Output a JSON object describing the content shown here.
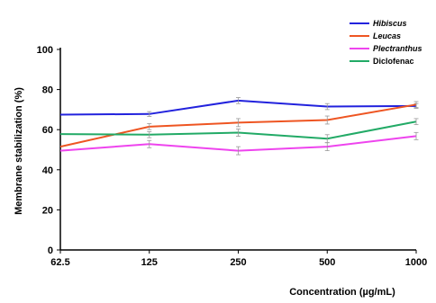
{
  "chart_data": {
    "type": "line",
    "xlabel": "Concentration (µg/mL)",
    "ylabel": "Membrane stabilization (%)",
    "categories": [
      "62.5",
      "125",
      "250",
      "500",
      "1000"
    ],
    "ylim": [
      0,
      100
    ],
    "yticks": [
      "0",
      "20",
      "40",
      "60",
      "80",
      "100"
    ],
    "legend_position": "top-right",
    "grid": false,
    "series": [
      {
        "name": "Hibiscus",
        "color": "#2222dd",
        "italic": true,
        "values": [
          67.5,
          67.8,
          74.5,
          71.5,
          71.8
        ],
        "errors": [
          0,
          1.2,
          1.5,
          1.5,
          1.2
        ]
      },
      {
        "name": "Leucas",
        "color": "#ee5522",
        "italic": true,
        "values": [
          51.5,
          61.5,
          63.5,
          64.8,
          72.5
        ],
        "errors": [
          0,
          1.5,
          2,
          2,
          1.5
        ]
      },
      {
        "name": "Plectranthus",
        "color": "#ee44ee",
        "italic": true,
        "values": [
          49.5,
          52.8,
          49.5,
          51.5,
          56.8
        ],
        "errors": [
          0,
          1.8,
          2,
          2,
          1.8
        ]
      },
      {
        "name": "Diclofenac",
        "color": "#22aa66",
        "italic": false,
        "values": [
          57.8,
          57.5,
          58.5,
          55.5,
          64.0
        ],
        "errors": [
          0,
          1.5,
          1.8,
          2,
          1.5
        ]
      }
    ]
  }
}
